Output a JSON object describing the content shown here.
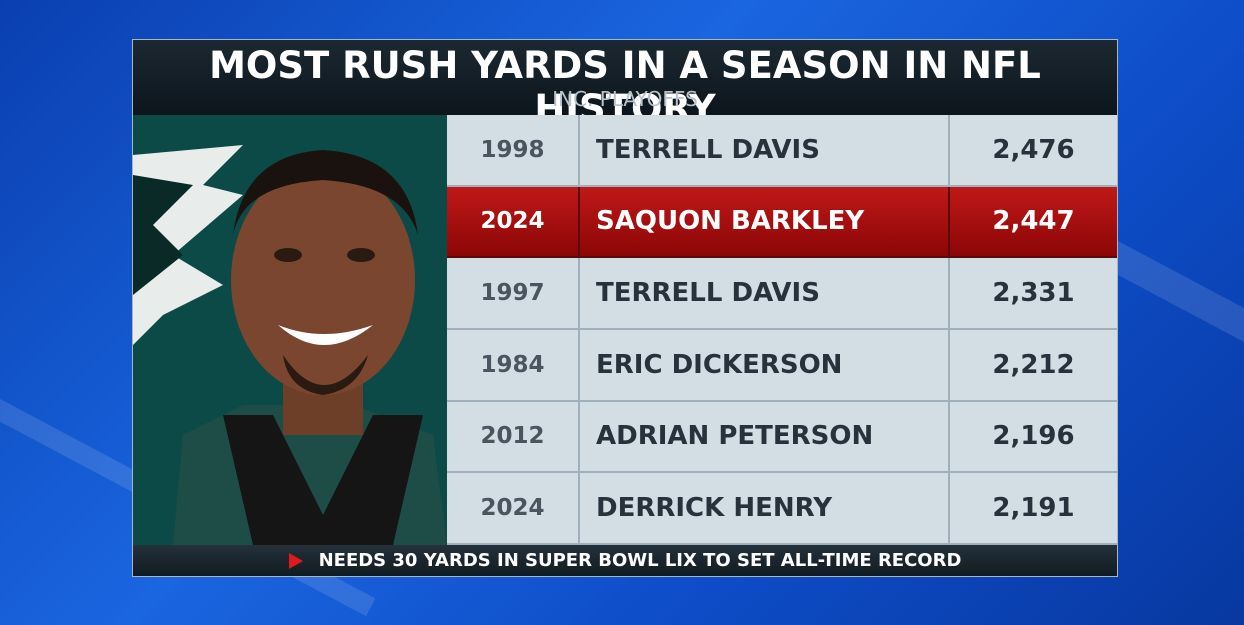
{
  "header": {
    "title": "MOST RUSH YARDS IN A SEASON IN NFL HISTORY",
    "subtitle": "INC. PLAYOFFS"
  },
  "table": {
    "rows": [
      [
        "1998",
        "TERRELL DAVIS",
        "2,476"
      ],
      [
        "2024",
        "SAQUON BARKLEY",
        "2,447"
      ],
      [
        "1997",
        "TERRELL DAVIS",
        "2,331"
      ],
      [
        "1984",
        "ERIC DICKERSON",
        "2,212"
      ],
      [
        "2012",
        "ADRIAN PETERSON",
        "2,196"
      ],
      [
        "2024",
        "DERRICK HENRY",
        "2,191"
      ]
    ],
    "highlighted_row": 1
  },
  "footer": {
    "text": "NEEDS 30 YARDS IN SUPER BOWL LIX TO SET ALL-TIME RECORD"
  }
}
